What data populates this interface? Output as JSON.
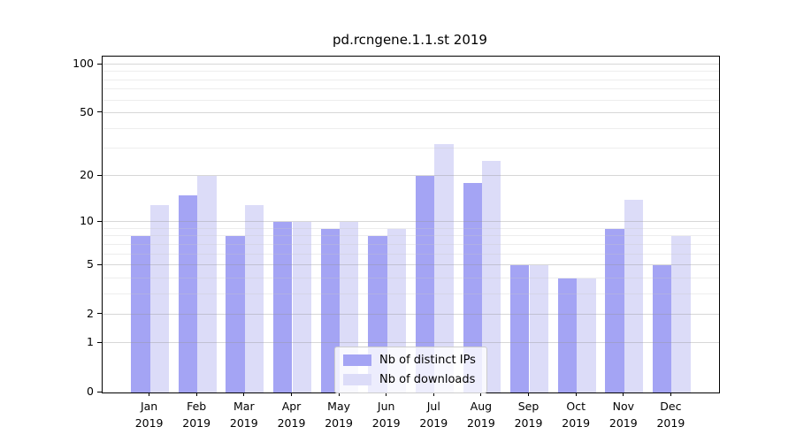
{
  "title": "pd.rcngene.1.1.st 2019",
  "legend": {
    "items": [
      {
        "label": "Nb of distinct IPs",
        "color": "#a4a4f4"
      },
      {
        "label": "Nb of downloads",
        "color": "#dcdcf8"
      }
    ]
  },
  "chart_data": {
    "type": "bar",
    "title": "pd.rcngene.1.1.st 2019",
    "categories": [
      "Jan",
      "Feb",
      "Mar",
      "Apr",
      "May",
      "Jun",
      "Jul",
      "Aug",
      "Sep",
      "Oct",
      "Nov",
      "Dec"
    ],
    "year_line": "2019",
    "series": [
      {
        "name": "Nb of distinct IPs",
        "color": "#a4a4f4",
        "values": [
          8,
          15,
          8,
          10,
          9,
          8,
          20,
          18,
          5,
          4,
          9,
          5
        ]
      },
      {
        "name": "Nb of downloads",
        "color": "#dcdcf8",
        "values": [
          13,
          20,
          13,
          10,
          10,
          9,
          32,
          25,
          5,
          4,
          14,
          8
        ]
      }
    ],
    "yscale": "log1p",
    "yticks": [
      0,
      1,
      2,
      5,
      10,
      20,
      50,
      100
    ],
    "minor_gridlines": [
      3,
      4,
      6,
      7,
      8,
      9,
      30,
      40,
      60,
      70,
      80,
      90
    ],
    "ylim": [
      0,
      112
    ],
    "grid": "on",
    "legend_position": "lower center",
    "xlabel": "",
    "ylabel": ""
  }
}
